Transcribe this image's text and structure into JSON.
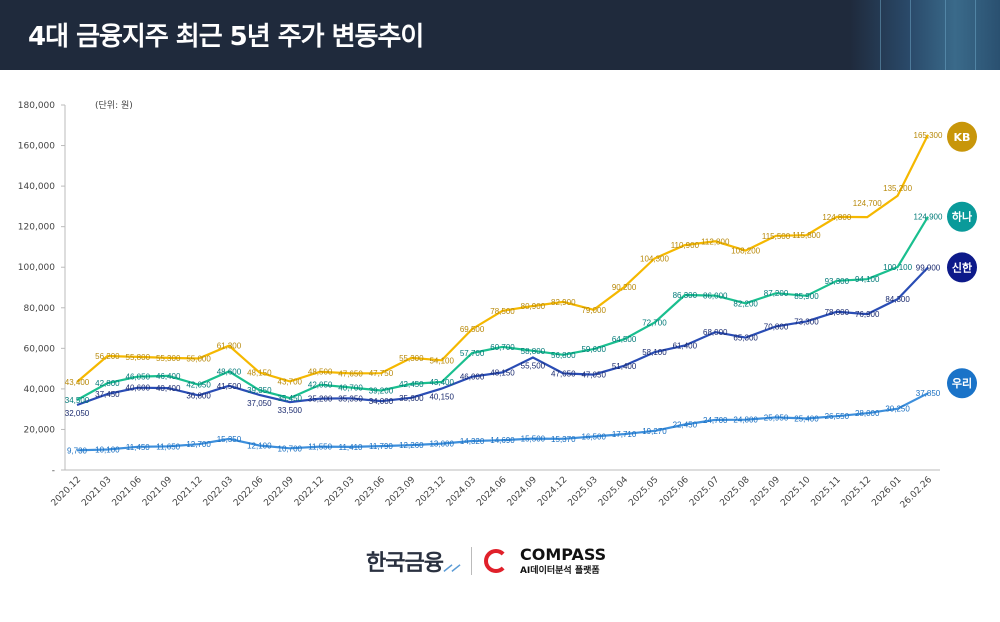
{
  "header": {
    "title": "4대 금융지주 최근 5년 주가 변동추이"
  },
  "footer": {
    "brand1": "한국금융",
    "brand2": "COMPASS",
    "brand2_sub": "AI데이터분석 플랫폼"
  },
  "chart_data": {
    "type": "line",
    "unit_note": "(단위: 원)",
    "ylim": [
      0,
      180000
    ],
    "yticks": [
      0,
      20000,
      40000,
      60000,
      80000,
      100000,
      120000,
      140000,
      160000,
      180000
    ],
    "ytick_labels": [
      "-",
      "20,000",
      "40,000",
      "60,000",
      "80,000",
      "100,000",
      "120,000",
      "140,000",
      "160,000",
      "180,000"
    ],
    "grid": false,
    "legend": "right-end badges",
    "categories": [
      "2020.12",
      "2021.03",
      "2021.06",
      "2021.09",
      "2021.12",
      "2022.03",
      "2022.06",
      "2022.09",
      "2022.12",
      "2023.03",
      "2023.06",
      "2023.09",
      "2023.12",
      "2024.03",
      "2024.06",
      "2024.09",
      "2024.12",
      "2025.03",
      "2025.04",
      "2025.05",
      "2025.06",
      "2025.07",
      "2025.08",
      "2025.09",
      "2025.10",
      "2025.11",
      "2025.12",
      "2026.01",
      "26.02.26"
    ],
    "series": [
      {
        "name": "KB",
        "color": "#f5b800",
        "label_color": "#b8890a",
        "badge_color": "#c8960a",
        "values": [
          43400,
          56200,
          55800,
          55300,
          55000,
          61300,
          48150,
          43700,
          48500,
          47650,
          47750,
          55300,
          54100,
          69500,
          78500,
          80900,
          82900,
          79000,
          90200,
          104300,
          110900,
          112800,
          108200,
          115500,
          115800,
          124800,
          124700,
          135200,
          165300
        ]
      },
      {
        "name": "하나",
        "color": "#1abf8f",
        "label_color": "#007a78",
        "badge_color": "#0a9a9a",
        "values": [
          34500,
          42800,
          46050,
          46400,
          42050,
          48600,
          39350,
          35450,
          42050,
          40700,
          39200,
          42450,
          43400,
          57700,
          60700,
          58800,
          56800,
          59600,
          64500,
          72700,
          86300,
          86000,
          82200,
          87200,
          85900,
          93300,
          94100,
          100100,
          124900
        ]
      },
      {
        "name": "신한",
        "color": "#2a4db5",
        "label_color": "#1a2a6e",
        "badge_color": "#0d1a8a",
        "values": [
          32050,
          37450,
          40600,
          40400,
          36800,
          41500,
          37050,
          33500,
          35200,
          35350,
          34000,
          35600,
          40150,
          46000,
          48150,
          55500,
          47650,
          47050,
          51400,
          58100,
          61400,
          68000,
          65300,
          70800,
          73300,
          78000,
          76900,
          84300,
          99900
        ]
      },
      {
        "name": "우리",
        "color": "#3d8fdc",
        "label_color": "#1a6fc0",
        "badge_color": "#1a73c8",
        "values": [
          9730,
          10100,
          11450,
          11650,
          12700,
          15350,
          12100,
          10700,
          11550,
          11410,
          11790,
          12260,
          13000,
          14320,
          14690,
          15500,
          15370,
          16500,
          17710,
          19270,
          22450,
          24700,
          24800,
          25950,
          25400,
          26550,
          28000,
          30250,
          37850
        ]
      }
    ]
  }
}
